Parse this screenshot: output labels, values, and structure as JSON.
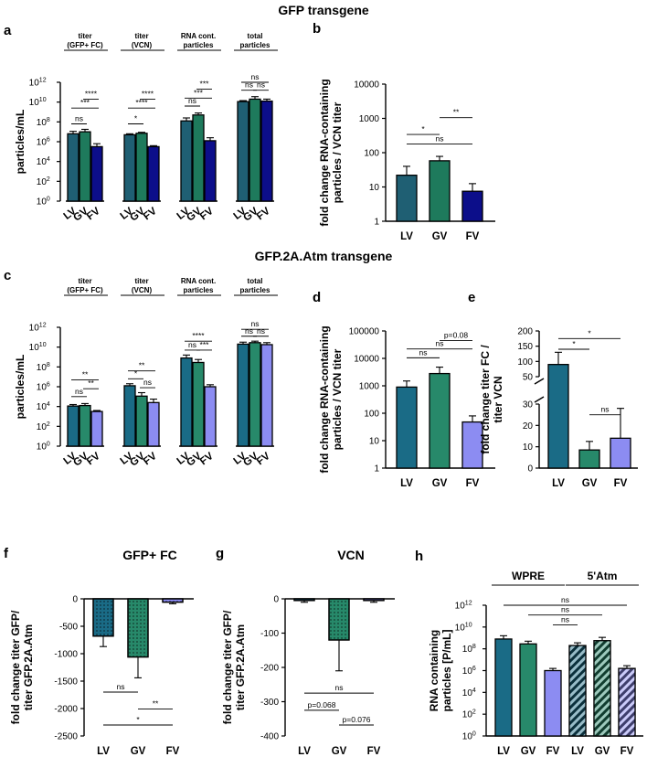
{
  "headers": {
    "top": "GFP transgene",
    "middle": "GFP.2A.Atm transgene"
  },
  "colors": {
    "lv": "#1f5f73",
    "gv": "#1e7a5c",
    "fv_blue": "#0c0e8a",
    "fv_light": "#8c8cf2",
    "lv_d": "#1a6b86",
    "gv_d": "#27896a"
  },
  "chart_data": [
    {
      "id": "a",
      "type": "bar",
      "panel_label": "a",
      "ylabel": "particles/mL",
      "yscale": "log10",
      "ylim": [
        0,
        12
      ],
      "yticks": [
        "10",
        "10",
        "10",
        "10",
        "10",
        "10",
        "10"
      ],
      "yticks_exp": [
        "0",
        "2",
        "4",
        "6",
        "8",
        "10",
        "12"
      ],
      "categories": [
        "LV",
        "GV",
        "FV"
      ],
      "groups": [
        {
          "label": [
            "titer",
            "(GFP+ FC)"
          ],
          "values_log": [
            6.8,
            7.0,
            5.5
          ],
          "err_log": [
            0.25,
            0.25,
            0.3
          ],
          "colors": [
            "#1f5f73",
            "#1e7a5c",
            "#0c0e8a"
          ],
          "sig": [
            {
              "a": 0,
              "b": 1,
              "text": "ns",
              "y": 7.8
            },
            {
              "a": 0,
              "b": 2,
              "text": "***",
              "y": 9.4
            },
            {
              "a": 1,
              "b": 2,
              "text": "****",
              "y": 10.3
            }
          ]
        },
        {
          "label": [
            "titer",
            "(VCN)"
          ],
          "values_log": [
            6.7,
            6.85,
            5.5
          ],
          "err_log": [
            0.1,
            0.1,
            0.1
          ],
          "colors": [
            "#1f5f73",
            "#1e7a5c",
            "#0c0e8a"
          ],
          "sig": [
            {
              "a": 0,
              "b": 1,
              "text": "*",
              "y": 7.8
            },
            {
              "a": 0,
              "b": 2,
              "text": "****",
              "y": 9.4
            },
            {
              "a": 1,
              "b": 2,
              "text": "****",
              "y": 10.3
            }
          ]
        },
        {
          "label": [
            "RNA cont.",
            "particles"
          ],
          "values_log": [
            8.1,
            8.7,
            6.1
          ],
          "err_log": [
            0.3,
            0.2,
            0.3
          ],
          "colors": [
            "#1f5f73",
            "#1e7a5c",
            "#0c0e8a"
          ],
          "sig": [
            {
              "a": 0,
              "b": 1,
              "text": "ns",
              "y": 9.6
            },
            {
              "a": 0,
              "b": 2,
              "text": "***",
              "y": 10.4
            },
            {
              "a": 1,
              "b": 2,
              "text": "***",
              "y": 11.3
            }
          ]
        },
        {
          "label": [
            "total",
            "particles"
          ],
          "values_log": [
            10.05,
            10.3,
            10.1
          ],
          "err_log": [
            0.1,
            0.25,
            0.2
          ],
          "colors": [
            "#1f5f73",
            "#1e7a5c",
            "#0c0e8a"
          ],
          "sig": [
            {
              "a": 0,
              "b": 1,
              "text": "ns",
              "y": 11.2
            },
            {
              "a": 1,
              "b": 2,
              "text": "ns",
              "y": 11.2
            },
            {
              "a": 0,
              "b": 2,
              "text": "ns",
              "y": 12.0
            }
          ]
        }
      ]
    },
    {
      "id": "b",
      "type": "bar",
      "panel_label": "b",
      "ylabel": [
        "fold change RNA-containing",
        "particles  / VCN titer"
      ],
      "yscale": "log10",
      "ylim": [
        0,
        4
      ],
      "yticks": [
        "1",
        "10",
        "100",
        "1000",
        "10000"
      ],
      "categories": [
        "LV",
        "GV",
        "FV"
      ],
      "values": [
        22,
        58,
        7.5
      ],
      "err_upper": [
        40,
        78,
        12.5
      ],
      "colors": [
        "#1f5f73",
        "#1e7a5c",
        "#0c0e8a"
      ],
      "sig": [
        {
          "a": 0,
          "b": 1,
          "text": "*",
          "y": 340
        },
        {
          "a": 1,
          "b": 2,
          "text": "**",
          "y": 1050
        },
        {
          "a": 0,
          "b": 2,
          "text": "ns",
          "y": 180
        }
      ]
    },
    {
      "id": "c",
      "type": "bar",
      "panel_label": "c",
      "ylabel": "particles/mL",
      "yscale": "log10",
      "ylim": [
        0,
        12
      ],
      "yticks": [
        "10",
        "10",
        "10",
        "10",
        "10",
        "10",
        "10"
      ],
      "yticks_exp": [
        "0",
        "2",
        "4",
        "6",
        "8",
        "10",
        "12"
      ],
      "categories": [
        "LV",
        "GV",
        "FV"
      ],
      "groups": [
        {
          "label": [
            "titer",
            "(GFP+  FC)"
          ],
          "values_log": [
            4.05,
            4.1,
            3.5
          ],
          "err_log": [
            0.15,
            0.2,
            0.1
          ],
          "colors": [
            "#1a6b86",
            "#27896a",
            "#8c8cf2"
          ],
          "sig": [
            {
              "a": 0,
              "b": 1,
              "text": "ns",
              "y": 5.0
            },
            {
              "a": 0,
              "b": 2,
              "text": "**",
              "y": 6.7
            },
            {
              "a": 1,
              "b": 2,
              "text": "**",
              "y": 5.8
            }
          ]
        },
        {
          "label": [
            "titer",
            "(VCN)"
          ],
          "values_log": [
            6.1,
            5.05,
            4.4
          ],
          "err_log": [
            0.2,
            0.35,
            0.35
          ],
          "colors": [
            "#1a6b86",
            "#27896a",
            "#8c8cf2"
          ],
          "sig": [
            {
              "a": 0,
              "b": 1,
              "text": "*",
              "y": 6.8
            },
            {
              "a": 0,
              "b": 2,
              "text": "**",
              "y": 7.6
            },
            {
              "a": 1,
              "b": 2,
              "text": "ns",
              "y": 5.9
            }
          ]
        },
        {
          "label": [
            "RNA cont.",
            "particles"
          ],
          "values_log": [
            8.9,
            8.45,
            6.0
          ],
          "err_log": [
            0.3,
            0.3,
            0.2
          ],
          "colors": [
            "#1a6b86",
            "#27896a",
            "#8c8cf2"
          ],
          "sig": [
            {
              "a": 0,
              "b": 1,
              "text": "ns",
              "y": 9.7
            },
            {
              "a": 1,
              "b": 2,
              "text": "***",
              "y": 9.7
            },
            {
              "a": 0,
              "b": 2,
              "text": "****",
              "y": 10.6
            }
          ]
        },
        {
          "label": [
            "total",
            "particles"
          ],
          "values_log": [
            10.3,
            10.45,
            10.25
          ],
          "err_log": [
            0.2,
            0.15,
            0.2
          ],
          "colors": [
            "#1a6b86",
            "#27896a",
            "#8c8cf2"
          ],
          "sig": [
            {
              "a": 0,
              "b": 1,
              "text": "ns",
              "y": 11.1
            },
            {
              "a": 1,
              "b": 2,
              "text": "ns",
              "y": 11.1
            },
            {
              "a": 0,
              "b": 2,
              "text": "ns",
              "y": 11.8
            }
          ]
        }
      ]
    },
    {
      "id": "d",
      "type": "bar",
      "panel_label": "d",
      "ylabel": [
        "fold change RNA-containing",
        "particles  / VCN titer"
      ],
      "yscale": "log10",
      "ylim": [
        0,
        5
      ],
      "yticks": [
        "1",
        "10",
        "100",
        "1000",
        "10000",
        "100000"
      ],
      "categories": [
        "LV",
        "GV",
        "FV"
      ],
      "values": [
        900,
        2800,
        48
      ],
      "err_upper": [
        1500,
        4800,
        80
      ],
      "colors": [
        "#1a6b86",
        "#27896a",
        "#8c8cf2"
      ],
      "sig": [
        {
          "a": 0,
          "b": 1,
          "text": "ns",
          "y": 10500
        },
        {
          "a": 0,
          "b": 2,
          "text": "ns",
          "y": 22000
        },
        {
          "a": 1,
          "b": 2,
          "text": "p=0.08",
          "y": 45000
        }
      ]
    },
    {
      "id": "e",
      "type": "bar",
      "panel_label": "e",
      "ylabel": [
        "fold change titer FC /",
        "titer VCN"
      ],
      "yscale": "broken-linear",
      "ylim": [
        0,
        200
      ],
      "yticks": [
        "0",
        "10",
        "20",
        "30",
        "50",
        "100",
        "150",
        "200"
      ],
      "categories": [
        "LV",
        "GV",
        "FV"
      ],
      "values": [
        90,
        8.5,
        14
      ],
      "err_upper": [
        130,
        12.5,
        28
      ],
      "colors": [
        "#1a6b86",
        "#27896a",
        "#8c8cf2"
      ],
      "sig": [
        {
          "a": 0,
          "b": 1,
          "text": "*",
          "y": 140
        },
        {
          "a": 0,
          "b": 2,
          "text": "*",
          "y": 175
        },
        {
          "a": 1,
          "b": 2,
          "text": "ns",
          "y": 25
        }
      ]
    },
    {
      "id": "f",
      "type": "bar",
      "panel_label": "f",
      "title": "GFP+ FC",
      "ylabel": [
        "fold change titer GFP/",
        "titer GFP.2A.Atm"
      ],
      "ylim": [
        -2500,
        0
      ],
      "yticks": [
        "0",
        "-500",
        "-1000",
        "-1500",
        "-2000",
        "-2500"
      ],
      "categories": [
        "LV",
        "GV",
        "FV"
      ],
      "values": [
        -680,
        -1060,
        -60
      ],
      "err_lower": [
        -870,
        -1440,
        -90
      ],
      "colors": [
        "#1a6b86",
        "#27896a",
        "#8c8cf2"
      ],
      "pattern": "dots",
      "sig": [
        {
          "a": 0,
          "b": 1,
          "text": "ns",
          "y": -1700
        },
        {
          "a": 1,
          "b": 2,
          "text": "**",
          "y": -2010
        },
        {
          "a": 0,
          "b": 2,
          "text": "*",
          "y": -2300
        }
      ]
    },
    {
      "id": "g",
      "type": "bar",
      "panel_label": "g",
      "title": "VCN",
      "ylabel": [
        "fold change titer GFP/",
        "titer GFP.2A.Atm"
      ],
      "ylim": [
        -400,
        0
      ],
      "yticks": [
        "0",
        "-100",
        "-200",
        "-300",
        "-400"
      ],
      "categories": [
        "LV",
        "GV",
        "FV"
      ],
      "values": [
        -5,
        -120,
        -5
      ],
      "err_lower": [
        -10,
        -210,
        -10
      ],
      "colors": [
        "#1a6b86",
        "#27896a",
        "#8c8cf2"
      ],
      "pattern": "dots",
      "sig": [
        {
          "a": 0,
          "b": 2,
          "text": "ns",
          "y": -275
        },
        {
          "a": 0,
          "b": 1,
          "text": "p=0.068",
          "y": -325
        },
        {
          "a": 1,
          "b": 2,
          "text": "p=0.076",
          "y": -368
        }
      ]
    },
    {
      "id": "h",
      "type": "bar",
      "panel_label": "h",
      "ylabel": [
        "RNA containing",
        "particles [P/mL]"
      ],
      "yscale": "log10",
      "ylim": [
        0,
        12
      ],
      "yticks": [
        "10",
        "10",
        "10",
        "10",
        "10",
        "10",
        "10"
      ],
      "yticks_exp": [
        "0",
        "2",
        "4",
        "6",
        "8",
        "10",
        "12"
      ],
      "categories": [
        "LV",
        "GV",
        "FV",
        "LV",
        "GV",
        "FV"
      ],
      "group_labels": [
        "WPRE",
        "5'Atm"
      ],
      "values_log": [
        8.9,
        8.45,
        6.0,
        8.3,
        8.75,
        6.2
      ],
      "err_log": [
        0.3,
        0.25,
        0.2,
        0.25,
        0.3,
        0.25
      ],
      "colors": [
        "#1a6b86",
        "#27896a",
        "#8c8cf2",
        "#1a6b86",
        "#27896a",
        "#8c8cf2"
      ],
      "hatched": [
        false,
        false,
        false,
        true,
        true,
        true
      ],
      "sig": [
        {
          "a": 2,
          "b": 3,
          "text": "ns",
          "y": 10.2
        },
        {
          "a": 1,
          "b": 4,
          "text": "ns",
          "y": 11.1
        },
        {
          "a": 0,
          "b": 5,
          "text": "ns",
          "y": 12.0
        }
      ]
    }
  ]
}
